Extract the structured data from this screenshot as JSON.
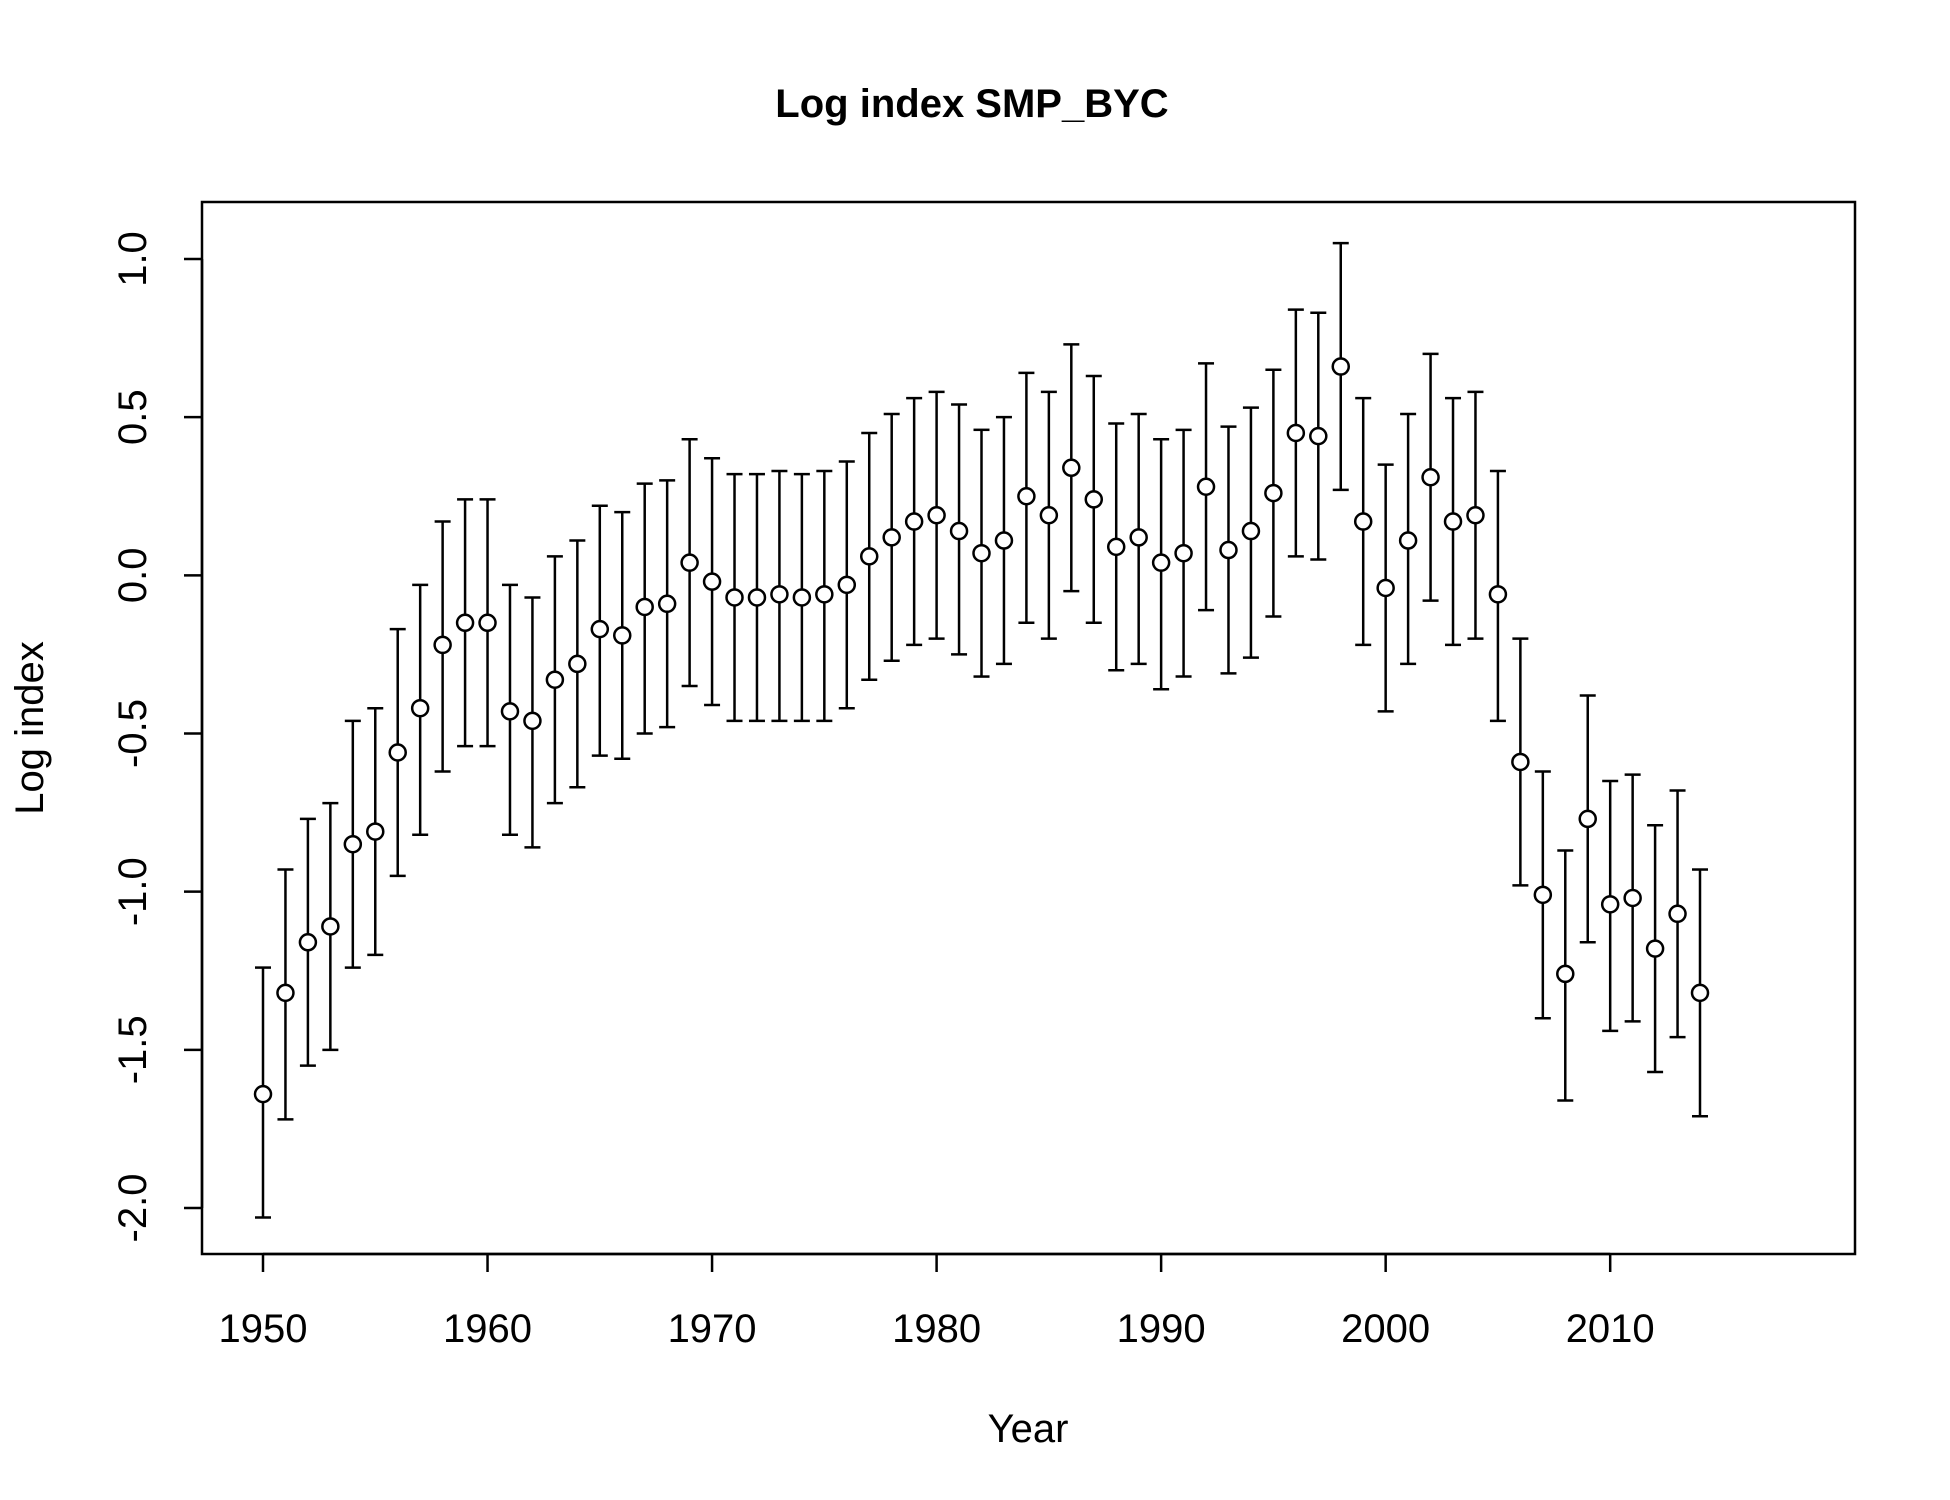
{
  "chart_data": {
    "type": "scatter",
    "title": "Log index SMP_BYC",
    "xlabel": "Year",
    "ylabel": "Log index",
    "xlim": [
      1950,
      2014
    ],
    "ylim": [
      -2.0,
      1.0
    ],
    "xticks": [
      1950,
      1960,
      1970,
      1980,
      1990,
      2000,
      2010
    ],
    "yticks": [
      -2.0,
      -1.5,
      -1.0,
      -0.5,
      0.0,
      0.5,
      1.0
    ],
    "ytick_labels": [
      "-2.0",
      "-1.5",
      "-1.0",
      "-0.5",
      "0.0",
      "0.5",
      "1.0"
    ],
    "grid": false,
    "legend": "none",
    "marker": "open-circle",
    "error_bars": true,
    "points": [
      {
        "year": 1950,
        "value": -1.64,
        "lower": -2.03,
        "upper": -1.24
      },
      {
        "year": 1951,
        "value": -1.32,
        "lower": -1.72,
        "upper": -0.93
      },
      {
        "year": 1952,
        "value": -1.16,
        "lower": -1.55,
        "upper": -0.77
      },
      {
        "year": 1953,
        "value": -1.11,
        "lower": -1.5,
        "upper": -0.72
      },
      {
        "year": 1954,
        "value": -0.85,
        "lower": -1.24,
        "upper": -0.46
      },
      {
        "year": 1955,
        "value": -0.81,
        "lower": -1.2,
        "upper": -0.42
      },
      {
        "year": 1956,
        "value": -0.56,
        "lower": -0.95,
        "upper": -0.17
      },
      {
        "year": 1957,
        "value": -0.42,
        "lower": -0.82,
        "upper": -0.03
      },
      {
        "year": 1958,
        "value": -0.22,
        "lower": -0.62,
        "upper": 0.17
      },
      {
        "year": 1959,
        "value": -0.15,
        "lower": -0.54,
        "upper": 0.24
      },
      {
        "year": 1960,
        "value": -0.15,
        "lower": -0.54,
        "upper": 0.24
      },
      {
        "year": 1961,
        "value": -0.43,
        "lower": -0.82,
        "upper": -0.03
      },
      {
        "year": 1962,
        "value": -0.46,
        "lower": -0.86,
        "upper": -0.07
      },
      {
        "year": 1963,
        "value": -0.33,
        "lower": -0.72,
        "upper": 0.06
      },
      {
        "year": 1964,
        "value": -0.28,
        "lower": -0.67,
        "upper": 0.11
      },
      {
        "year": 1965,
        "value": -0.17,
        "lower": -0.57,
        "upper": 0.22
      },
      {
        "year": 1966,
        "value": -0.19,
        "lower": -0.58,
        "upper": 0.2
      },
      {
        "year": 1967,
        "value": -0.1,
        "lower": -0.5,
        "upper": 0.29
      },
      {
        "year": 1968,
        "value": -0.09,
        "lower": -0.48,
        "upper": 0.3
      },
      {
        "year": 1969,
        "value": 0.04,
        "lower": -0.35,
        "upper": 0.43
      },
      {
        "year": 1970,
        "value": -0.02,
        "lower": -0.41,
        "upper": 0.37
      },
      {
        "year": 1971,
        "value": -0.07,
        "lower": -0.46,
        "upper": 0.32
      },
      {
        "year": 1972,
        "value": -0.07,
        "lower": -0.46,
        "upper": 0.32
      },
      {
        "year": 1973,
        "value": -0.06,
        "lower": -0.46,
        "upper": 0.33
      },
      {
        "year": 1974,
        "value": -0.07,
        "lower": -0.46,
        "upper": 0.32
      },
      {
        "year": 1975,
        "value": -0.06,
        "lower": -0.46,
        "upper": 0.33
      },
      {
        "year": 1976,
        "value": -0.03,
        "lower": -0.42,
        "upper": 0.36
      },
      {
        "year": 1977,
        "value": 0.06,
        "lower": -0.33,
        "upper": 0.45
      },
      {
        "year": 1978,
        "value": 0.12,
        "lower": -0.27,
        "upper": 0.51
      },
      {
        "year": 1979,
        "value": 0.17,
        "lower": -0.22,
        "upper": 0.56
      },
      {
        "year": 1980,
        "value": 0.19,
        "lower": -0.2,
        "upper": 0.58
      },
      {
        "year": 1981,
        "value": 0.14,
        "lower": -0.25,
        "upper": 0.54
      },
      {
        "year": 1982,
        "value": 0.07,
        "lower": -0.32,
        "upper": 0.46
      },
      {
        "year": 1983,
        "value": 0.11,
        "lower": -0.28,
        "upper": 0.5
      },
      {
        "year": 1984,
        "value": 0.25,
        "lower": -0.15,
        "upper": 0.64
      },
      {
        "year": 1985,
        "value": 0.19,
        "lower": -0.2,
        "upper": 0.58
      },
      {
        "year": 1986,
        "value": 0.34,
        "lower": -0.05,
        "upper": 0.73
      },
      {
        "year": 1987,
        "value": 0.24,
        "lower": -0.15,
        "upper": 0.63
      },
      {
        "year": 1988,
        "value": 0.09,
        "lower": -0.3,
        "upper": 0.48
      },
      {
        "year": 1989,
        "value": 0.12,
        "lower": -0.28,
        "upper": 0.51
      },
      {
        "year": 1990,
        "value": 0.04,
        "lower": -0.36,
        "upper": 0.43
      },
      {
        "year": 1991,
        "value": 0.07,
        "lower": -0.32,
        "upper": 0.46
      },
      {
        "year": 1992,
        "value": 0.28,
        "lower": -0.11,
        "upper": 0.67
      },
      {
        "year": 1993,
        "value": 0.08,
        "lower": -0.31,
        "upper": 0.47
      },
      {
        "year": 1994,
        "value": 0.14,
        "lower": -0.26,
        "upper": 0.53
      },
      {
        "year": 1995,
        "value": 0.26,
        "lower": -0.13,
        "upper": 0.65
      },
      {
        "year": 1996,
        "value": 0.45,
        "lower": 0.06,
        "upper": 0.84
      },
      {
        "year": 1997,
        "value": 0.44,
        "lower": 0.05,
        "upper": 0.83
      },
      {
        "year": 1998,
        "value": 0.66,
        "lower": 0.27,
        "upper": 1.05
      },
      {
        "year": 1999,
        "value": 0.17,
        "lower": -0.22,
        "upper": 0.56
      },
      {
        "year": 2000,
        "value": -0.04,
        "lower": -0.43,
        "upper": 0.35
      },
      {
        "year": 2001,
        "value": 0.11,
        "lower": -0.28,
        "upper": 0.51
      },
      {
        "year": 2002,
        "value": 0.31,
        "lower": -0.08,
        "upper": 0.7
      },
      {
        "year": 2003,
        "value": 0.17,
        "lower": -0.22,
        "upper": 0.56
      },
      {
        "year": 2004,
        "value": 0.19,
        "lower": -0.2,
        "upper": 0.58
      },
      {
        "year": 2005,
        "value": -0.06,
        "lower": -0.46,
        "upper": 0.33
      },
      {
        "year": 2006,
        "value": -0.59,
        "lower": -0.98,
        "upper": -0.2
      },
      {
        "year": 2007,
        "value": -1.01,
        "lower": -1.4,
        "upper": -0.62
      },
      {
        "year": 2008,
        "value": -1.26,
        "lower": -1.66,
        "upper": -0.87
      },
      {
        "year": 2009,
        "value": -0.77,
        "lower": -1.16,
        "upper": -0.38
      },
      {
        "year": 2010,
        "value": -1.04,
        "lower": -1.44,
        "upper": -0.65
      },
      {
        "year": 2011,
        "value": -1.02,
        "lower": -1.41,
        "upper": -0.63
      },
      {
        "year": 2012,
        "value": -1.18,
        "lower": -1.57,
        "upper": -0.79
      },
      {
        "year": 2013,
        "value": -1.07,
        "lower": -1.46,
        "upper": -0.68
      },
      {
        "year": 2014,
        "value": -1.32,
        "lower": -1.71,
        "upper": -0.93
      }
    ]
  }
}
